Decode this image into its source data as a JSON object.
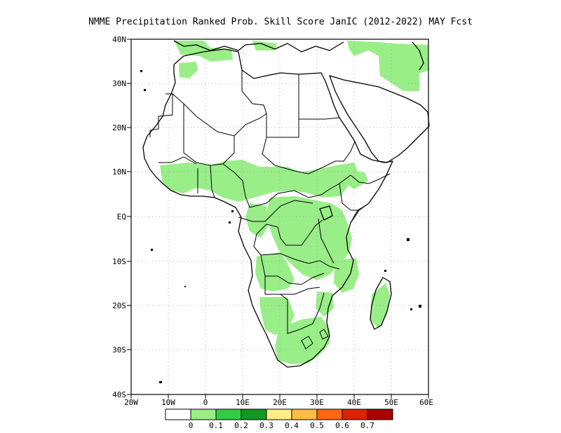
{
  "title": "NMME  Precipitation Ranked Prob. Skill Score JanIC (2012-2022) MAY Fcst",
  "map": {
    "lon_range": [
      -20,
      60
    ],
    "lat_range": [
      -40,
      40
    ],
    "lon_ticks": [
      "20W",
      "10W",
      "0",
      "10E",
      "20E",
      "30E",
      "40E",
      "50E",
      "60E"
    ],
    "lat_ticks": [
      "40N",
      "30N",
      "20N",
      "10N",
      "EQ",
      "10S",
      "20S",
      "30S",
      "40S"
    ]
  },
  "colorbar": {
    "colors": [
      "#ffffff",
      "#99ee88",
      "#33cc44",
      "#119922",
      "#ffee88",
      "#ffbb44",
      "#ff6611",
      "#dd2200",
      "#aa0000"
    ],
    "labels": [
      "0",
      "0.1",
      "0.2",
      "0.3",
      "0.4",
      "0.5",
      "0.6",
      "0.7"
    ]
  }
}
